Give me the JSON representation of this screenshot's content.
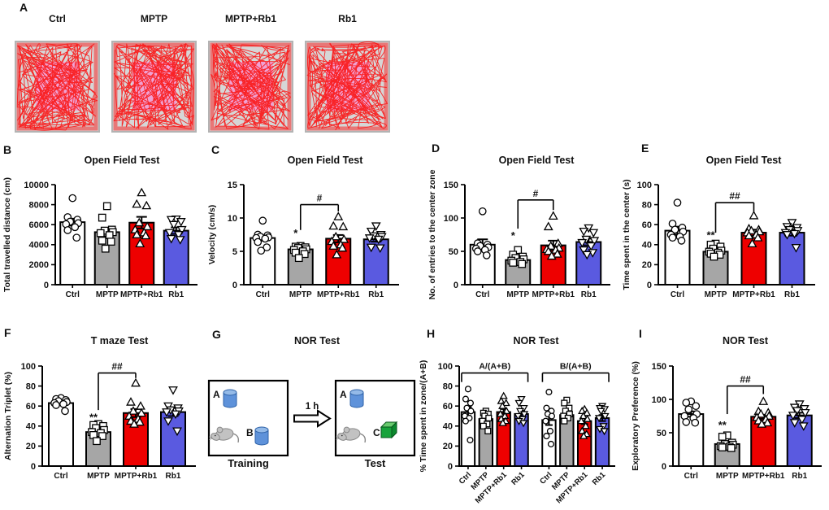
{
  "panel_a": {
    "label": "A",
    "arenas": [
      {
        "title": "Ctrl"
      },
      {
        "title": "MPTP"
      },
      {
        "title": "MPTP+Rb1"
      },
      {
        "title": "Rb1"
      }
    ]
  },
  "styles": {
    "groups": {
      "Ctrl": {
        "color": "#FFFFFF",
        "marker": "circle"
      },
      "MPTP": {
        "color": "#A6A6A6",
        "marker": "square"
      },
      "MPTP+Rb1": {
        "color": "#EE0000",
        "marker": "triangle-up"
      },
      "Rb1": {
        "color": "#5A5AE0",
        "marker": "triangle-down"
      }
    },
    "arena": {
      "bg": "#D6D6D6",
      "border": "#B3B3B3",
      "center_zone": "#F0A0D2",
      "trace": "#FA1818"
    },
    "objects": {
      "cylinder_body": "#5E92DA",
      "cylinder_top": "#94BAE8",
      "cylinder_outline": "#2E62A8",
      "cube_front": "#17A33B",
      "cube_top": "#68CA6E",
      "cube_side": "#0C8A2F",
      "mouse_body": "#C2C2C2",
      "mouse_outline": "#898989"
    }
  },
  "nor_diagram": {
    "label": "G",
    "title": "NOR Test",
    "interval_label": "1 h",
    "boxes": [
      {
        "caption": "Training",
        "object_labels": [
          "A",
          "B"
        ]
      },
      {
        "caption": "Test",
        "object_labels": [
          "A",
          "C"
        ]
      }
    ]
  },
  "chart_data": [
    {
      "type": "bar",
      "panel": "B",
      "title": "Open Field Test",
      "ylabel": "Total travelled distance (cm)",
      "xlabel": "",
      "ymax": 10000,
      "yticks": [
        0,
        2000,
        4000,
        6000,
        8000,
        10000
      ],
      "categories": [
        "Ctrl",
        "MPTP",
        "MPTP+Rb1",
        "Rb1"
      ],
      "bars": [
        {
          "group": "Ctrl",
          "mean": 6250,
          "sem": 350,
          "points": [
            8650,
            6750,
            6500,
            6300,
            6150,
            6050,
            5750,
            5450,
            4700
          ]
        },
        {
          "group": "MPTP",
          "mean": 5250,
          "sem": 420,
          "points": [
            7850,
            6700,
            5500,
            5400,
            5250,
            5150,
            4950,
            4400,
            4300,
            3600
          ]
        },
        {
          "group": "MPTP+Rb1",
          "mean": 6200,
          "sem": 580,
          "points": [
            9200,
            8050,
            7900,
            6200,
            5800,
            5500,
            5200,
            5000,
            4900,
            4100
          ]
        },
        {
          "group": "Rb1",
          "mean": 5400,
          "sem": 330,
          "points": [
            6550,
            6500,
            6300,
            6000,
            5500,
            5200,
            5000,
            4600,
            4500
          ]
        }
      ]
    },
    {
      "type": "bar",
      "panel": "C",
      "title": "Open Field Test",
      "ylabel": "Velocity (cm/s)",
      "xlabel": "",
      "ymax": 15,
      "yticks": [
        0,
        5,
        10,
        15
      ],
      "categories": [
        "Ctrl",
        "MPTP",
        "MPTP+Rb1",
        "Rb1"
      ],
      "bars": [
        {
          "group": "Ctrl",
          "mean": 7.0,
          "sem": 0.4,
          "points": [
            9.6,
            7.5,
            7.4,
            7.2,
            7.1,
            7.0,
            6.9,
            6.4,
            5.6,
            5.1
          ]
        },
        {
          "group": "MPTP",
          "mean": 5.3,
          "sem": 0.25,
          "points": [
            5.8,
            5.7,
            5.6,
            5.5,
            5.3,
            5.2,
            5.0,
            4.8,
            4.6,
            4.0
          ]
        },
        {
          "group": "MPTP+Rb1",
          "mean": 6.9,
          "sem": 0.55,
          "points": [
            10.2,
            8.8,
            8.7,
            7.2,
            6.8,
            6.5,
            6.0,
            5.8,
            5.5,
            4.5
          ]
        },
        {
          "group": "Rb1",
          "mean": 6.8,
          "sem": 0.35,
          "points": [
            8.8,
            8.0,
            7.5,
            7.3,
            7.2,
            7.0,
            6.8,
            5.6,
            5.5
          ]
        }
      ],
      "sig": {
        "bar": 1,
        "label": "*",
        "y": 7.2,
        "dx": -6
      },
      "bracket": {
        "from": 1,
        "to": 2,
        "y": 12.0,
        "left_to": 8.2,
        "right_to": 11.0,
        "label": "#"
      }
    },
    {
      "type": "bar",
      "panel": "D",
      "title": "Open Field Test",
      "ylabel": "No. of entries to the center zone",
      "xlabel": "",
      "ymax": 150,
      "yticks": [
        0,
        50,
        100,
        150
      ],
      "categories": [
        "Ctrl",
        "MPTP",
        "MPTP+Rb1",
        "Rb1"
      ],
      "bars": [
        {
          "group": "Ctrl",
          "mean": 60,
          "sem": 8,
          "points": [
            110,
            62,
            60,
            58,
            56,
            54,
            52,
            50,
            44
          ]
        },
        {
          "group": "MPTP",
          "mean": 37,
          "sem": 4,
          "points": [
            52,
            45,
            42,
            40,
            38,
            36,
            34,
            33,
            31
          ]
        },
        {
          "group": "MPTP+Rb1",
          "mean": 59,
          "sem": 7,
          "points": [
            103,
            87,
            62,
            58,
            55,
            53,
            52,
            50,
            46,
            43
          ]
        },
        {
          "group": "Rb1",
          "mean": 64,
          "sem": 5,
          "points": [
            85,
            80,
            78,
            68,
            66,
            63,
            58,
            52,
            48,
            45
          ]
        }
      ],
      "sig": {
        "bar": 1,
        "label": "*",
        "y": 68,
        "dx": -6
      },
      "bracket": {
        "from": 1,
        "to": 2,
        "y": 127,
        "left_to": 84,
        "right_to": 112,
        "label": "#"
      }
    },
    {
      "type": "bar",
      "panel": "E",
      "title": "Open Field Test",
      "ylabel": "Time spent in the center (s)",
      "xlabel": "",
      "ymax": 100,
      "yticks": [
        0,
        20,
        40,
        60,
        80,
        100
      ],
      "categories": [
        "Ctrl",
        "MPTP",
        "MPTP+Rb1",
        "Rb1"
      ],
      "bars": [
        {
          "group": "Ctrl",
          "mean": 54,
          "sem": 4,
          "points": [
            82,
            61,
            57,
            55,
            53,
            50,
            48,
            47,
            44
          ]
        },
        {
          "group": "MPTP",
          "mean": 33,
          "sem": 2,
          "points": [
            41,
            40,
            38,
            36,
            34,
            33,
            32,
            31,
            30,
            28
          ]
        },
        {
          "group": "MPTP+Rb1",
          "mean": 52,
          "sem": 3,
          "points": [
            69,
            56,
            55,
            54,
            53,
            52,
            50,
            49,
            47,
            41
          ]
        },
        {
          "group": "Rb1",
          "mean": 52,
          "sem": 3,
          "points": [
            62,
            58,
            57,
            55,
            54,
            52,
            51,
            50,
            37
          ]
        }
      ],
      "sig": {
        "bar": 1,
        "label": "**",
        "y": 46,
        "dx": -6
      },
      "bracket": {
        "from": 1,
        "to": 2,
        "y": 82,
        "left_to": 52,
        "right_to": 73,
        "label": "##"
      }
    },
    {
      "type": "bar",
      "panel": "F",
      "title": "T maze Test",
      "ylabel": "Alternation Triplet (%)",
      "xlabel": "",
      "ymax": 100,
      "yticks": [
        0,
        20,
        40,
        60,
        80,
        100
      ],
      "categories": [
        "Ctrl",
        "MPTP",
        "MPTP+Rb1",
        "Rb1"
      ],
      "bars": [
        {
          "group": "Ctrl",
          "mean": 63,
          "sem": 1.5,
          "points": [
            68,
            67,
            66,
            65,
            64,
            63,
            62,
            61,
            55
          ]
        },
        {
          "group": "MPTP",
          "mean": 34,
          "sem": 2.5,
          "points": [
            42,
            41,
            40,
            38,
            36,
            34,
            33,
            31,
            30,
            25
          ]
        },
        {
          "group": "MPTP+Rb1",
          "mean": 53,
          "sem": 4,
          "points": [
            83,
            64,
            60,
            55,
            53,
            50,
            47,
            45,
            44,
            42
          ]
        },
        {
          "group": "Rb1",
          "mean": 54,
          "sem": 4,
          "points": [
            76,
            60,
            58,
            56,
            55,
            54,
            52,
            45,
            35
          ]
        }
      ],
      "sig": {
        "bar": 1,
        "label": "**",
        "y": 45,
        "dx": -6
      },
      "bracket": {
        "from": 1,
        "to": 2,
        "y": 93,
        "left_to": 56,
        "right_to": 88,
        "label": "##"
      }
    },
    {
      "type": "bar",
      "panel": "H",
      "title": "NOR Test",
      "ylabel": "% Time spent in zone/(A+B)",
      "xlabel": "",
      "ymax": 100,
      "yticks": [
        0,
        20,
        40,
        60,
        80,
        100
      ],
      "rotate_labels": true,
      "categories": [
        "Ctrl",
        "MPTP",
        "MPTP+Rb1",
        "Rb1",
        "Ctrl",
        "MPTP",
        "MPTP+Rb1",
        "Rb1"
      ],
      "bars": [
        {
          "group": "Ctrl",
          "mean": 54,
          "sem": 5,
          "points": [
            77,
            67,
            63,
            58,
            55,
            50,
            48,
            45,
            26
          ]
        },
        {
          "group": "MPTP",
          "mean": 47,
          "sem": 3,
          "points": [
            55,
            53,
            52,
            50,
            48,
            45,
            42,
            40,
            35
          ]
        },
        {
          "group": "MPTP+Rb1",
          "mean": 54,
          "sem": 3,
          "points": [
            70,
            65,
            63,
            60,
            55,
            52,
            50,
            47,
            45,
            43
          ]
        },
        {
          "group": "Rb1",
          "mean": 52,
          "sem": 3,
          "points": [
            67,
            63,
            58,
            55,
            52,
            50,
            47,
            45,
            43
          ]
        },
        {
          "group": "Ctrl",
          "mean": 46,
          "sem": 5,
          "points": [
            74,
            58,
            55,
            52,
            50,
            45,
            35,
            30,
            22
          ]
        },
        {
          "group": "MPTP",
          "mean": 51,
          "sem": 3,
          "points": [
            66,
            63,
            58,
            55,
            52,
            50,
            48,
            45
          ]
        },
        {
          "group": "MPTP+Rb1",
          "mean": 45,
          "sem": 3,
          "points": [
            57,
            55,
            53,
            50,
            47,
            45,
            40,
            35,
            32,
            30
          ]
        },
        {
          "group": "Rb1",
          "mean": 48,
          "sem": 3,
          "points": [
            60,
            58,
            57,
            55,
            50,
            48,
            40,
            37,
            35
          ]
        }
      ],
      "group_brackets": [
        {
          "from": 0,
          "to": 3,
          "y": 93,
          "drop": 9,
          "label": "A/(A+B)"
        },
        {
          "from": 4,
          "to": 7,
          "y": 93,
          "drop": 9,
          "label": "B/(A+B)"
        }
      ]
    },
    {
      "type": "bar",
      "panel": "I",
      "title": "NOR Test",
      "ylabel": "Exploratory Preference (%)",
      "xlabel": "",
      "ymax": 150,
      "yticks": [
        0,
        50,
        100,
        150
      ],
      "categories": [
        "Ctrl",
        "MPTP",
        "MPTP+Rb1",
        "Rb1"
      ],
      "bars": [
        {
          "group": "Ctrl",
          "mean": 78,
          "sem": 4,
          "points": [
            97,
            95,
            90,
            85,
            78,
            75,
            72,
            66,
            65
          ]
        },
        {
          "group": "MPTP",
          "mean": 33,
          "sem": 3,
          "points": [
            46,
            44,
            35,
            33,
            32,
            30,
            29,
            28,
            27
          ]
        },
        {
          "group": "MPTP+Rb1",
          "mean": 74,
          "sem": 3,
          "points": [
            97,
            82,
            80,
            78,
            75,
            73,
            70,
            68,
            65,
            63
          ]
        },
        {
          "group": "Rb1",
          "mean": 76,
          "sem": 4,
          "points": [
            93,
            88,
            86,
            83,
            80,
            76,
            70,
            65,
            60
          ]
        }
      ],
      "sig": {
        "bar": 1,
        "label": "**",
        "y": 56,
        "dx": -6
      },
      "bracket": {
        "from": 1,
        "to": 2,
        "y": 120,
        "left_to": 78,
        "right_to": 108,
        "label": "##"
      }
    }
  ]
}
